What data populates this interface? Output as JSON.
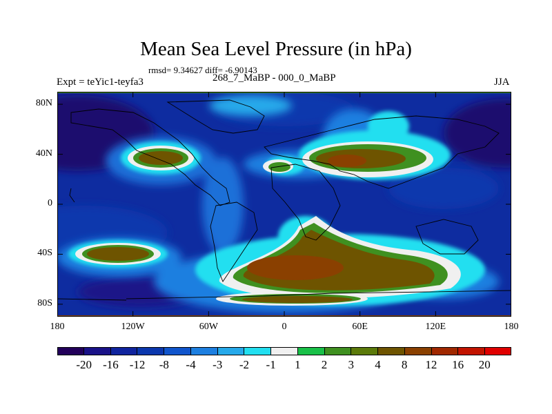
{
  "title": "Mean Sea Level Pressure (in hPa)",
  "stats": "rmsd= 9.34627 diff= -6.90143",
  "left_label": "Expt = teYic1-teyfa3",
  "center_label": "268_7_MaBP - 000_0_MaBP",
  "right_label": "JJA",
  "lat_ticks": [
    {
      "label": "80N",
      "lat": 80
    },
    {
      "label": "40N",
      "lat": 40
    },
    {
      "label": "0",
      "lat": 0
    },
    {
      "label": "40S",
      "lat": -40
    },
    {
      "label": "80S",
      "lat": -80
    }
  ],
  "lon_ticks": [
    {
      "label": "180",
      "lon": -180
    },
    {
      "label": "120W",
      "lon": -120
    },
    {
      "label": "60W",
      "lon": -60
    },
    {
      "label": "0",
      "lon": 0
    },
    {
      "label": "60E",
      "lon": 60
    },
    {
      "label": "120E",
      "lon": 120
    },
    {
      "label": "180",
      "lon": 180
    }
  ],
  "colorbar": {
    "colors": [
      "#22005a",
      "#1a1288",
      "#10249e",
      "#0b37ad",
      "#1055cc",
      "#1d7fe0",
      "#26a9ea",
      "#22dff0",
      "#f0f0f0",
      "#19c048",
      "#3f9020",
      "#5b7a0a",
      "#6e5400",
      "#8a4000",
      "#a02800",
      "#c21400",
      "#e00000"
    ],
    "labels": [
      "-20",
      "-16",
      "-12",
      "-8",
      "-4",
      "-3",
      "-2",
      "-1",
      "1",
      "2",
      "3",
      "4",
      "8",
      "12",
      "16",
      "20"
    ]
  },
  "colors": {
    "ocean_background": "#0e2ca0"
  }
}
